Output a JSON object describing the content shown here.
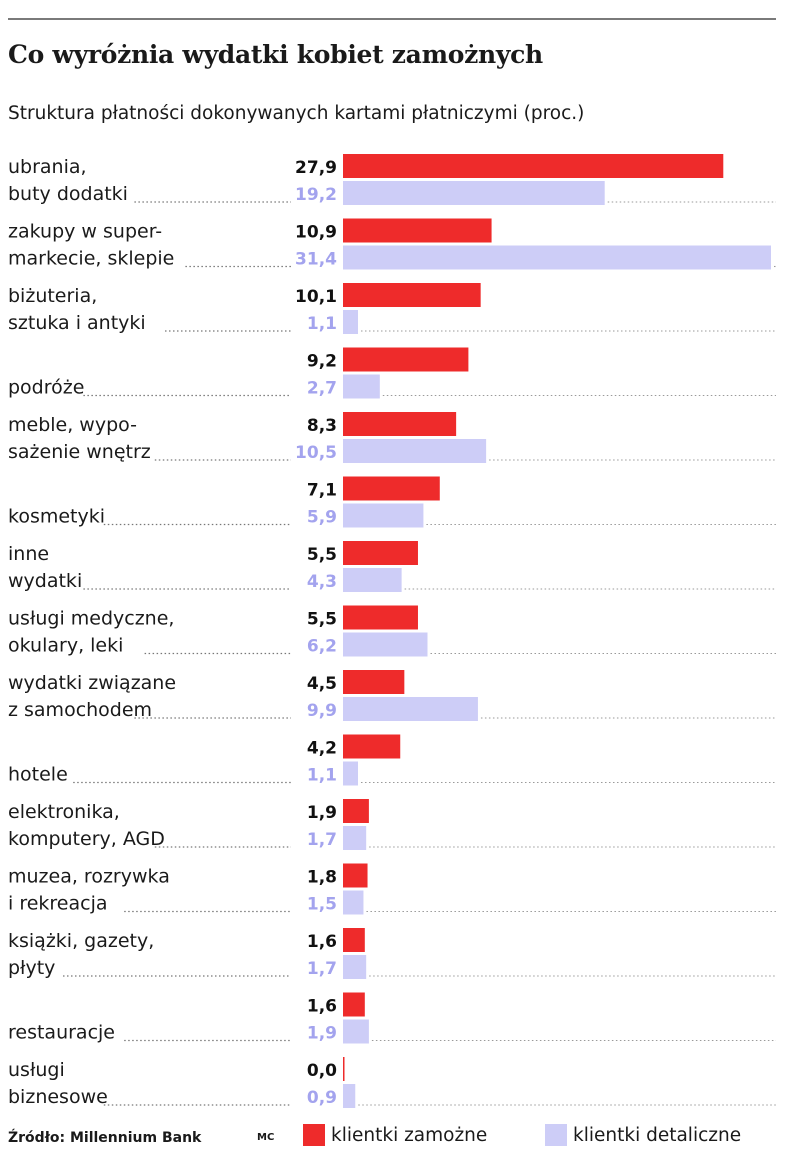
{
  "title": "Co wyróżnia wydatki kobiet zamożnych",
  "subtitle": "Struktura płatności dokonywanych kartami płatniczymi (proc.)",
  "source": "Źródło:  Millennium Bank",
  "author": "MC",
  "colors": {
    "series1": "#ee2b2b",
    "series2": "#cdcdf7",
    "series2_label": "#a3a3ee"
  },
  "chart_data": {
    "type": "bar",
    "orientation": "horizontal",
    "title": "Co wyróżnia wydatki kobiet zamożnych",
    "subtitle": "Struktura płatności dokonywanych kartami płatniczymi (proc.)",
    "categories": [
      [
        "ubrania,",
        "buty dodatki"
      ],
      [
        "zakupy w super-",
        "markecie, sklepie"
      ],
      [
        "biżuteria,",
        "sztuka i antyki"
      ],
      [
        "podróże"
      ],
      [
        "meble, wypo-",
        "sażenie wnętrz"
      ],
      [
        "kosmetyki"
      ],
      [
        "inne",
        "wydatki"
      ],
      [
        "usługi medyczne,",
        "okulary, leki"
      ],
      [
        "wydatki związane",
        "z samochodem"
      ],
      [
        "hotele"
      ],
      [
        "elektronika,",
        "komputery, AGD"
      ],
      [
        "muzea, rozrywka",
        "i rekreacja"
      ],
      [
        "książki, gazety,",
        "płyty"
      ],
      [
        "restauracje"
      ],
      [
        "usługi",
        "biznesowe"
      ]
    ],
    "series": [
      {
        "name": "klientki zamożne",
        "color": "#ee2b2b",
        "values": [
          27.9,
          10.9,
          10.1,
          9.2,
          8.3,
          7.1,
          5.5,
          5.5,
          4.5,
          4.2,
          1.9,
          1.8,
          1.6,
          1.6,
          0.0
        ],
        "labels": [
          "27,9",
          "10,9",
          "10,1",
          "9,2",
          "8,3",
          "7,1",
          "5,5",
          "5,5",
          "4,5",
          "4,2",
          "1,9",
          "1,8",
          "1,6",
          "1,6",
          "0,0"
        ]
      },
      {
        "name": "klientki detaliczne",
        "color": "#cdcdf7",
        "values": [
          19.2,
          31.4,
          1.1,
          2.7,
          10.5,
          5.9,
          4.3,
          6.2,
          9.9,
          1.1,
          1.7,
          1.5,
          1.7,
          1.9,
          0.9
        ],
        "labels": [
          "19,2",
          "31,4",
          "1,1",
          "2,7",
          "10,5",
          "5,9",
          "4,3",
          "6,2",
          "9,9",
          "1,1",
          "1,7",
          "1,5",
          "1,7",
          "1,9",
          "0,9"
        ]
      }
    ],
    "xlim": [
      0,
      31.4
    ],
    "grid": false,
    "legend": "bottom-right"
  }
}
